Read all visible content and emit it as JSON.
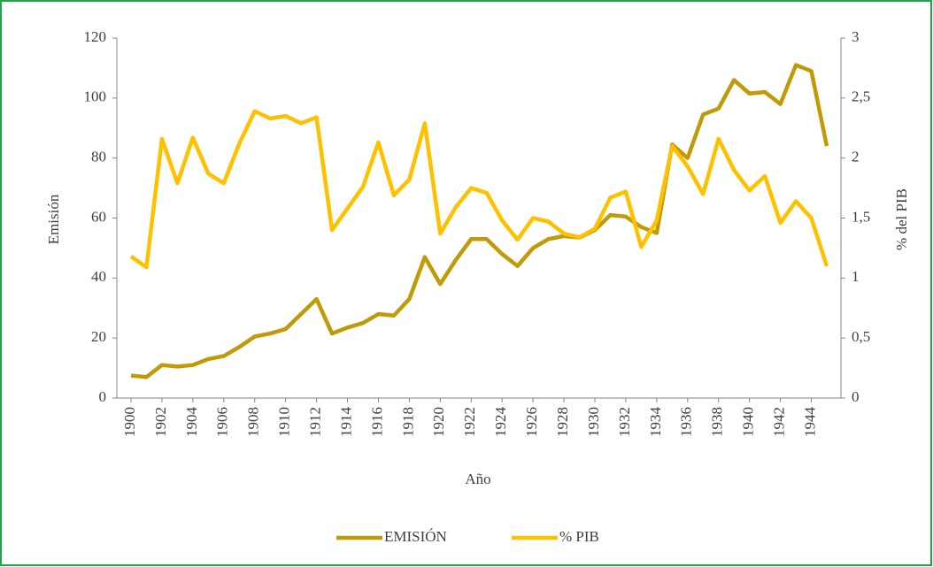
{
  "chart_data": {
    "type": "line",
    "x": [
      1900,
      1901,
      1902,
      1903,
      1904,
      1905,
      1906,
      1907,
      1908,
      1909,
      1910,
      1911,
      1912,
      1913,
      1914,
      1915,
      1916,
      1917,
      1918,
      1919,
      1920,
      1921,
      1922,
      1923,
      1924,
      1925,
      1926,
      1927,
      1928,
      1929,
      1930,
      1931,
      1932,
      1933,
      1934,
      1935,
      1936,
      1937,
      1938,
      1939,
      1940,
      1941,
      1942,
      1943,
      1944,
      1945
    ],
    "series": [
      {
        "name": "EMISIÓN",
        "color": "#c09a07",
        "values": [
          7.5,
          7,
          11,
          10.5,
          11,
          13,
          14,
          17,
          20.5,
          21.5,
          23,
          28,
          33,
          21.5,
          23.5,
          25,
          28,
          27.5,
          33,
          47,
          38,
          46,
          53,
          53,
          48,
          44,
          50,
          53,
          54,
          53.5,
          56,
          61,
          60.5,
          57,
          55,
          84.5,
          80,
          94.5,
          96.5,
          106,
          101.5,
          102,
          98,
          111,
          109,
          84
        ]
      },
      {
        "name": "% PIB",
        "color": "#ffc000",
        "axis": "y2",
        "values": [
          1.18,
          1.09,
          2.16,
          1.79,
          2.17,
          1.87,
          1.79,
          2.12,
          2.39,
          2.33,
          2.35,
          2.29,
          2.34,
          1.4,
          1.58,
          1.76,
          2.13,
          1.69,
          1.82,
          2.29,
          1.37,
          1.59,
          1.75,
          1.71,
          1.48,
          1.32,
          1.5,
          1.47,
          1.37,
          1.34,
          1.41,
          1.67,
          1.72,
          1.26,
          1.48,
          2.1,
          1.93,
          1.7,
          2.16,
          1.9,
          1.73,
          1.85,
          1.46,
          1.64,
          1.5,
          1.1
        ]
      }
    ],
    "xlabel": "Año",
    "ylabel": "Emisión",
    "y2label": "% del PIB",
    "xlim": [
      1900,
      1945
    ],
    "xticks": [
      1900,
      1902,
      1904,
      1906,
      1908,
      1910,
      1912,
      1914,
      1916,
      1918,
      1920,
      1922,
      1924,
      1926,
      1928,
      1930,
      1932,
      1934,
      1936,
      1938,
      1940,
      1942,
      1944
    ],
    "ylim": [
      0,
      120
    ],
    "yticks": [
      0,
      20,
      40,
      60,
      80,
      100,
      120
    ],
    "y2lim": [
      0,
      3
    ],
    "y2ticks": [
      0,
      {
        "value": 0.5,
        "label": "0,5"
      },
      1,
      {
        "value": 1.5,
        "label": "1,5"
      },
      2,
      {
        "value": 2.5,
        "label": "2,5"
      },
      3
    ],
    "legend": "bottom"
  }
}
